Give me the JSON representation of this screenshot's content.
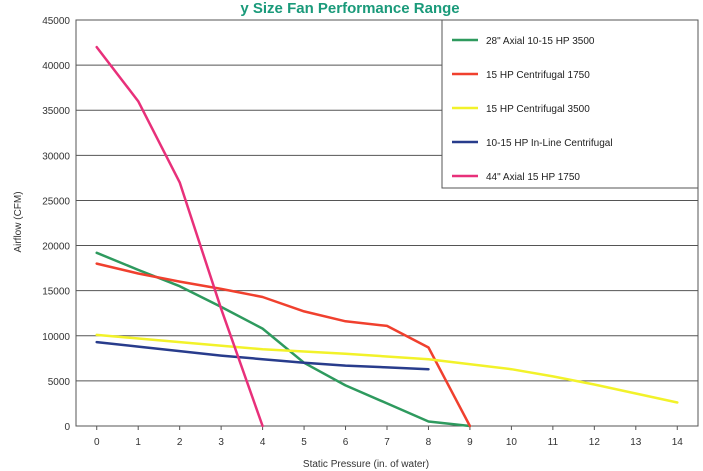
{
  "chart_data": {
    "type": "line",
    "title": "",
    "top_strip_text": "y Size Fan Performance Range",
    "xlabel": "Static Pressure (in. of water)",
    "ylabel": "Airflow (CFM)",
    "xlim": [
      -0.5,
      14.5
    ],
    "ylim": [
      0,
      45000
    ],
    "x_ticks": [
      0,
      1,
      2,
      3,
      4,
      5,
      6,
      7,
      8,
      9,
      10,
      11,
      12,
      13,
      14
    ],
    "y_ticks": [
      0,
      5000,
      10000,
      15000,
      20000,
      25000,
      30000,
      35000,
      40000,
      45000
    ],
    "grid": "horizontal",
    "legend_position": "top-right",
    "series": [
      {
        "name": "28\" Axial 10-15 HP 3500",
        "color": "#2e9a5e",
        "points": [
          [
            0,
            19200
          ],
          [
            1,
            17300
          ],
          [
            2,
            15500
          ],
          [
            3,
            13200
          ],
          [
            4,
            10800
          ],
          [
            5,
            7000
          ],
          [
            6,
            4500
          ],
          [
            7,
            2500
          ],
          [
            8,
            500
          ],
          [
            9,
            0
          ]
        ]
      },
      {
        "name": "15 HP Centrifugal 1750",
        "color": "#f0402e",
        "points": [
          [
            0,
            18000
          ],
          [
            1,
            16900
          ],
          [
            2,
            16000
          ],
          [
            3,
            15200
          ],
          [
            4,
            14300
          ],
          [
            5,
            12700
          ],
          [
            6,
            11600
          ],
          [
            7,
            11100
          ],
          [
            8,
            8700
          ],
          [
            9,
            0
          ]
        ]
      },
      {
        "name": "15 HP Centrifugal 3500",
        "color": "#f2f22a",
        "points": [
          [
            0,
            10100
          ],
          [
            2,
            9300
          ],
          [
            4,
            8500
          ],
          [
            6,
            8000
          ],
          [
            8,
            7400
          ],
          [
            10,
            6300
          ],
          [
            11,
            5500
          ],
          [
            12,
            4600
          ],
          [
            13,
            3600
          ],
          [
            14,
            2600
          ]
        ]
      },
      {
        "name": "10-15 HP In-Line Centrifugal",
        "color": "#283c8c",
        "points": [
          [
            0,
            9300
          ],
          [
            1,
            8800
          ],
          [
            2,
            8300
          ],
          [
            3,
            7800
          ],
          [
            4,
            7400
          ],
          [
            5,
            7000
          ],
          [
            6,
            6700
          ],
          [
            7,
            6500
          ],
          [
            8,
            6300
          ]
        ]
      },
      {
        "name": "44\" Axial 15 HP 1750",
        "color": "#e8307a",
        "points": [
          [
            0,
            42000
          ],
          [
            1,
            36000
          ],
          [
            2,
            27000
          ],
          [
            3,
            13000
          ],
          [
            4,
            0
          ]
        ]
      }
    ]
  }
}
